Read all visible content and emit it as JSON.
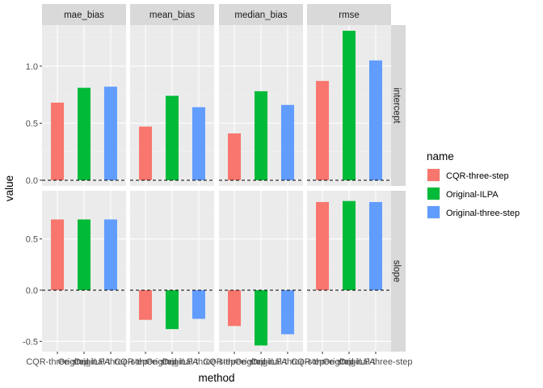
{
  "chart_data": {
    "type": "bar",
    "facet_columns": [
      "mae_bias",
      "mean_bias",
      "median_bias",
      "rmse"
    ],
    "facet_rows": [
      "intercept",
      "slope"
    ],
    "categories": [
      "CQR-three-step",
      "Original-ILPA",
      "Original-three-step"
    ],
    "xlabel": "method",
    "ylabel": "value",
    "legend_title": "name",
    "legend_position": "right",
    "grid": true,
    "reference_line": 0,
    "series": [
      {
        "name": "CQR-three-step",
        "color": "#F8766D"
      },
      {
        "name": "Original-ILPA",
        "color": "#00BA38"
      },
      {
        "name": "Original-three-step",
        "color": "#619CFF"
      }
    ],
    "panels": [
      {
        "column": "mae_bias",
        "row": "intercept",
        "values": [
          0.68,
          0.81,
          0.82
        ],
        "ylim": [
          -0.05,
          1.36
        ],
        "yticks": [
          0.0,
          0.5,
          1.0
        ]
      },
      {
        "column": "mean_bias",
        "row": "intercept",
        "values": [
          0.47,
          0.74,
          0.64
        ],
        "ylim": [
          -0.05,
          1.36
        ],
        "yticks": [
          0.0,
          0.5,
          1.0
        ]
      },
      {
        "column": "median_bias",
        "row": "intercept",
        "values": [
          0.41,
          0.78,
          0.66
        ],
        "ylim": [
          -0.05,
          1.36
        ],
        "yticks": [
          0.0,
          0.5,
          1.0
        ]
      },
      {
        "column": "rmse",
        "row": "intercept",
        "values": [
          0.87,
          1.31,
          1.05
        ],
        "ylim": [
          -0.05,
          1.36
        ],
        "yticks": [
          0.0,
          0.5,
          1.0
        ]
      },
      {
        "column": "mae_bias",
        "row": "slope",
        "values": [
          0.69,
          0.69,
          0.69
        ],
        "ylim": [
          -0.6,
          0.97
        ],
        "yticks": [
          -0.5,
          0.0,
          0.5
        ]
      },
      {
        "column": "mean_bias",
        "row": "slope",
        "values": [
          -0.29,
          -0.38,
          -0.28
        ],
        "ylim": [
          -0.6,
          0.97
        ],
        "yticks": [
          -0.5,
          0.0,
          0.5
        ]
      },
      {
        "column": "median_bias",
        "row": "slope",
        "values": [
          -0.35,
          -0.54,
          -0.43
        ],
        "ylim": [
          -0.6,
          0.97
        ],
        "yticks": [
          -0.5,
          0.0,
          0.5
        ]
      },
      {
        "column": "rmse",
        "row": "slope",
        "values": [
          0.86,
          0.87,
          0.86
        ],
        "ylim": [
          -0.6,
          0.97
        ],
        "yticks": [
          -0.5,
          0.0,
          0.5
        ]
      }
    ]
  },
  "colors": {
    "panel_background": "#EBEBEB",
    "strip_background": "#D9D9D9",
    "grid_major": "#FFFFFF",
    "grid_minor": "#F2F2F2",
    "tick_text": "#4D4D4D"
  }
}
